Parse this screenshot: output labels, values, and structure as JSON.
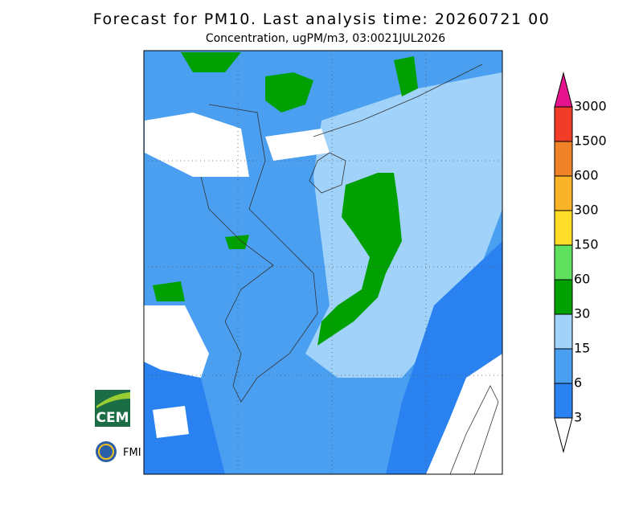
{
  "header": {
    "title": "Forecast for PM10. Last analysis time: 20260721 00",
    "subtitle": "Concentration, ugPM/m3, 03:0021JUL2026"
  },
  "colorbar": {
    "levels": [
      3,
      6,
      15,
      30,
      60,
      150,
      300,
      600,
      1500,
      3000
    ],
    "colors": [
      "#ffffff",
      "#2a82f0",
      "#4a9ff0",
      "#a0d2fa",
      "#00a000",
      "#5fe05f",
      "#ffdc28",
      "#fab428",
      "#f08228",
      "#f03c28",
      "#e6148c"
    ]
  },
  "logos": {
    "cem": "CEM",
    "fmi": "FMI"
  }
}
